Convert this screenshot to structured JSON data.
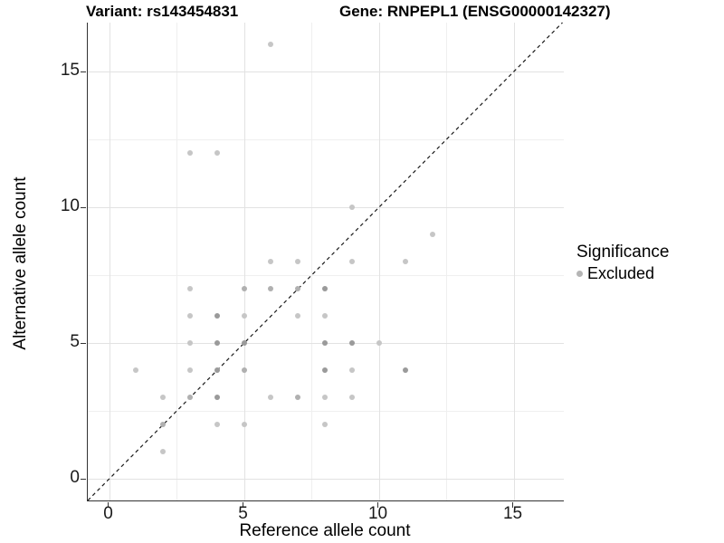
{
  "titles": {
    "left": "Variant: rs143454831",
    "right": "Gene: RNPEPL1 (ENSG00000142327)"
  },
  "legend": {
    "title": "Significance",
    "items": [
      {
        "label": "Excluded",
        "color": "#b5b5b5"
      }
    ]
  },
  "colors": {
    "point_light": "#c6c6c6",
    "point_medium": "#b0b0b0",
    "point_dark": "#9a9a9a",
    "grid_major": "#e2e2e2",
    "grid_minor": "#efefef",
    "axis": "#333333",
    "identity_line": "#1a1a1a"
  },
  "chart_data": {
    "type": "scatter",
    "title_left": "Variant: rs143454831",
    "title_right": "Gene: RNPEPL1 (ENSG00000142327)",
    "xlabel": "Reference allele count",
    "ylabel": "Alternative allele count",
    "xlim": [
      -0.79,
      16.86
    ],
    "ylim": [
      -0.79,
      16.81
    ],
    "x_ticks": [
      0,
      5,
      10,
      15
    ],
    "y_ticks": [
      0,
      5,
      10,
      15
    ],
    "x_minor_ticks": [
      2.5,
      7.5,
      12.5
    ],
    "y_minor_ticks": [
      2.5,
      7.5,
      12.5
    ],
    "grid": true,
    "legend_position": "right",
    "identity_line": {
      "style": "dashed",
      "from": [
        -0.79,
        -0.79
      ],
      "to": [
        16.81,
        16.81
      ]
    },
    "series": [
      {
        "name": "Excluded",
        "points": [
          [
            6,
            16,
            "l"
          ],
          [
            3,
            12,
            "l"
          ],
          [
            4,
            12,
            "l"
          ],
          [
            9,
            10,
            "l"
          ],
          [
            12,
            9,
            "l"
          ],
          [
            6,
            8,
            "l"
          ],
          [
            7,
            8,
            "l"
          ],
          [
            9,
            8,
            "l"
          ],
          [
            11,
            8,
            "l"
          ],
          [
            3,
            7,
            "l"
          ],
          [
            5,
            7,
            "m"
          ],
          [
            6,
            7,
            "m"
          ],
          [
            7,
            7,
            "m"
          ],
          [
            8,
            7,
            "d"
          ],
          [
            3,
            6,
            "l"
          ],
          [
            4,
            6,
            "d"
          ],
          [
            5,
            6,
            "l"
          ],
          [
            7,
            6,
            "l"
          ],
          [
            8,
            6,
            "l"
          ],
          [
            3,
            5,
            "l"
          ],
          [
            4,
            5,
            "d"
          ],
          [
            5,
            5,
            "d"
          ],
          [
            8,
            5,
            "d"
          ],
          [
            9,
            5,
            "d"
          ],
          [
            10,
            5,
            "l"
          ],
          [
            1,
            4,
            "l"
          ],
          [
            3,
            4,
            "l"
          ],
          [
            4,
            4,
            "d"
          ],
          [
            5,
            4,
            "m"
          ],
          [
            8,
            4,
            "d"
          ],
          [
            9,
            4,
            "l"
          ],
          [
            11,
            4,
            "d"
          ],
          [
            2,
            3,
            "l"
          ],
          [
            3,
            3,
            "m"
          ],
          [
            4,
            3,
            "d"
          ],
          [
            6,
            3,
            "l"
          ],
          [
            7,
            3,
            "m"
          ],
          [
            8,
            3,
            "l"
          ],
          [
            9,
            3,
            "l"
          ],
          [
            2,
            2,
            "m"
          ],
          [
            4,
            2,
            "l"
          ],
          [
            5,
            2,
            "l"
          ],
          [
            8,
            2,
            "l"
          ],
          [
            2,
            1,
            "l"
          ]
        ]
      }
    ]
  }
}
